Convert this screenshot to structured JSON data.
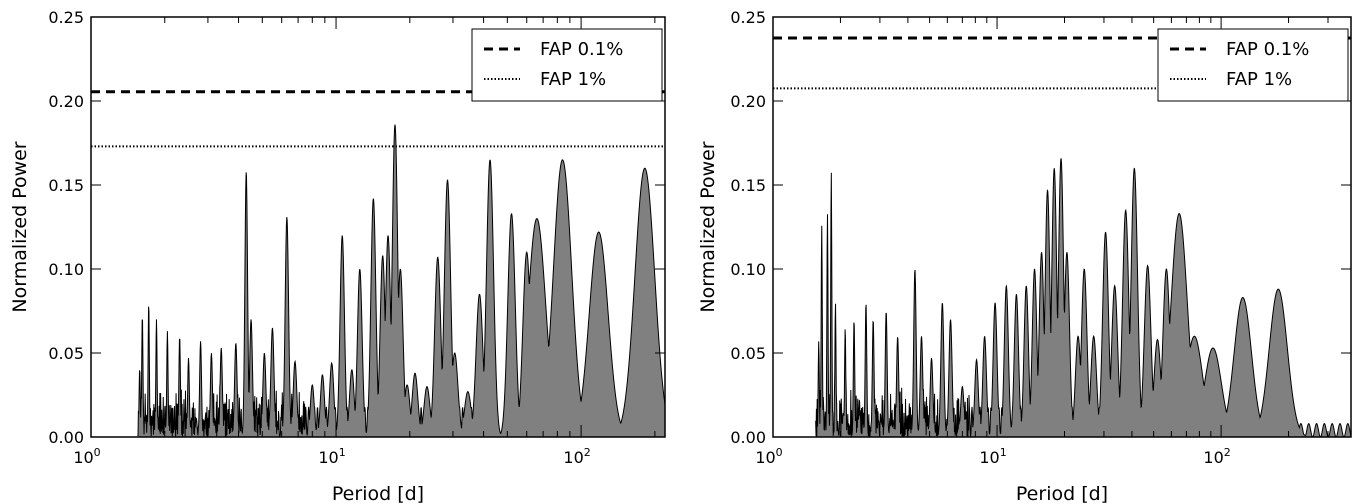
{
  "chart_data": [
    {
      "type": "area",
      "panel": "left",
      "xlabel": "Period [d]",
      "ylabel": "Normalized Power",
      "x_scale": "log",
      "xlim": [
        1,
        220
      ],
      "ylim": [
        0,
        0.25
      ],
      "x_ticks": [
        {
          "base": "10",
          "exp": "0"
        },
        {
          "base": "10",
          "exp": "1"
        },
        {
          "base": "10",
          "exp": "2"
        }
      ],
      "y_tick_labels": [
        "0.00",
        "0.05",
        "0.10",
        "0.15",
        "0.20",
        "0.25"
      ],
      "y_tick_values": [
        0,
        0.05,
        0.1,
        0.15,
        0.2,
        0.25
      ],
      "legend_position": "top-right",
      "fill_color": "#808080",
      "series": [
        {
          "name": "FAP 0.1%",
          "style": "dashed",
          "y": 0.2055
        },
        {
          "name": "FAP 1%",
          "style": "dotted",
          "y": 0.173
        }
      ],
      "x_min_data": 1.55,
      "peaks": [
        [
          1.58,
          0.041
        ],
        [
          1.62,
          0.073
        ],
        [
          1.72,
          0.08
        ],
        [
          1.85,
          0.07
        ],
        [
          2.05,
          0.063
        ],
        [
          2.3,
          0.06
        ],
        [
          2.5,
          0.047
        ],
        [
          2.8,
          0.057
        ],
        [
          3.1,
          0.05
        ],
        [
          3.4,
          0.053
        ],
        [
          3.9,
          0.056
        ],
        [
          4.3,
          0.158
        ],
        [
          4.5,
          0.07
        ],
        [
          5.1,
          0.05
        ],
        [
          5.5,
          0.065
        ],
        [
          6.3,
          0.131
        ],
        [
          6.8,
          0.045
        ],
        [
          8.0,
          0.031
        ],
        [
          8.8,
          0.037
        ],
        [
          9.6,
          0.044
        ],
        [
          10.6,
          0.12
        ],
        [
          11.6,
          0.04
        ],
        [
          12.5,
          0.1
        ],
        [
          14.2,
          0.142
        ],
        [
          15.5,
          0.108
        ],
        [
          16.3,
          0.12
        ],
        [
          17.4,
          0.186
        ],
        [
          18.3,
          0.1
        ],
        [
          19.5,
          0.031
        ],
        [
          21.0,
          0.038
        ],
        [
          23.5,
          0.03
        ],
        [
          26.0,
          0.107
        ],
        [
          28.5,
          0.153
        ],
        [
          30.5,
          0.05
        ],
        [
          34.5,
          0.027
        ],
        [
          38.5,
          0.085
        ],
        [
          42.5,
          0.165
        ],
        [
          52.0,
          0.133
        ],
        [
          60.0,
          0.11
        ],
        [
          66.0,
          0.13
        ],
        [
          84.0,
          0.165
        ],
        [
          118.0,
          0.122
        ],
        [
          182.0,
          0.16
        ]
      ]
    },
    {
      "type": "area",
      "panel": "right",
      "xlabel": "Period [d]",
      "ylabel": "Normalized Power",
      "x_scale": "log",
      "xlim": [
        1,
        380
      ],
      "ylim": [
        0,
        0.25
      ],
      "x_ticks": [
        {
          "base": "10",
          "exp": "0"
        },
        {
          "base": "10",
          "exp": "1"
        },
        {
          "base": "10",
          "exp": "2"
        }
      ],
      "y_tick_labels": [
        "0.00",
        "0.05",
        "0.10",
        "0.15",
        "0.20",
        "0.25"
      ],
      "y_tick_values": [
        0,
        0.05,
        0.1,
        0.15,
        0.2,
        0.25
      ],
      "legend_position": "top-right",
      "fill_color": "#808080",
      "series": [
        {
          "name": "FAP 0.1%",
          "style": "dashed",
          "y": 0.2375
        },
        {
          "name": "FAP 1%",
          "style": "dotted",
          "y": 0.2075
        }
      ],
      "x_min_data": 1.55,
      "peaks": [
        [
          1.6,
          0.057
        ],
        [
          1.65,
          0.126
        ],
        [
          1.75,
          0.133
        ],
        [
          1.82,
          0.158
        ],
        [
          1.9,
          0.08
        ],
        [
          2.1,
          0.065
        ],
        [
          2.3,
          0.07
        ],
        [
          2.6,
          0.08
        ],
        [
          2.8,
          0.07
        ],
        [
          3.2,
          0.075
        ],
        [
          3.6,
          0.06
        ],
        [
          4.3,
          0.1
        ],
        [
          4.6,
          0.06
        ],
        [
          5.1,
          0.047
        ],
        [
          5.7,
          0.08
        ],
        [
          6.2,
          0.07
        ],
        [
          7.0,
          0.03
        ],
        [
          8.1,
          0.046
        ],
        [
          8.8,
          0.06
        ],
        [
          9.8,
          0.08
        ],
        [
          11.0,
          0.09
        ],
        [
          12.2,
          0.085
        ],
        [
          13.5,
          0.09
        ],
        [
          14.7,
          0.1
        ],
        [
          15.8,
          0.11
        ],
        [
          16.8,
          0.147
        ],
        [
          18.0,
          0.16
        ],
        [
          19.3,
          0.166
        ],
        [
          20.5,
          0.11
        ],
        [
          23.0,
          0.06
        ],
        [
          24.5,
          0.1
        ],
        [
          27.0,
          0.06
        ],
        [
          30.5,
          0.122
        ],
        [
          33.5,
          0.09
        ],
        [
          37.5,
          0.135
        ],
        [
          41.0,
          0.16
        ],
        [
          47.0,
          0.102
        ],
        [
          52.0,
          0.058
        ],
        [
          57.0,
          0.1
        ],
        [
          65.0,
          0.133
        ],
        [
          76.0,
          0.06
        ],
        [
          92.0,
          0.053
        ],
        [
          125.0,
          0.083
        ],
        [
          180.0,
          0.088
        ]
      ]
    }
  ]
}
